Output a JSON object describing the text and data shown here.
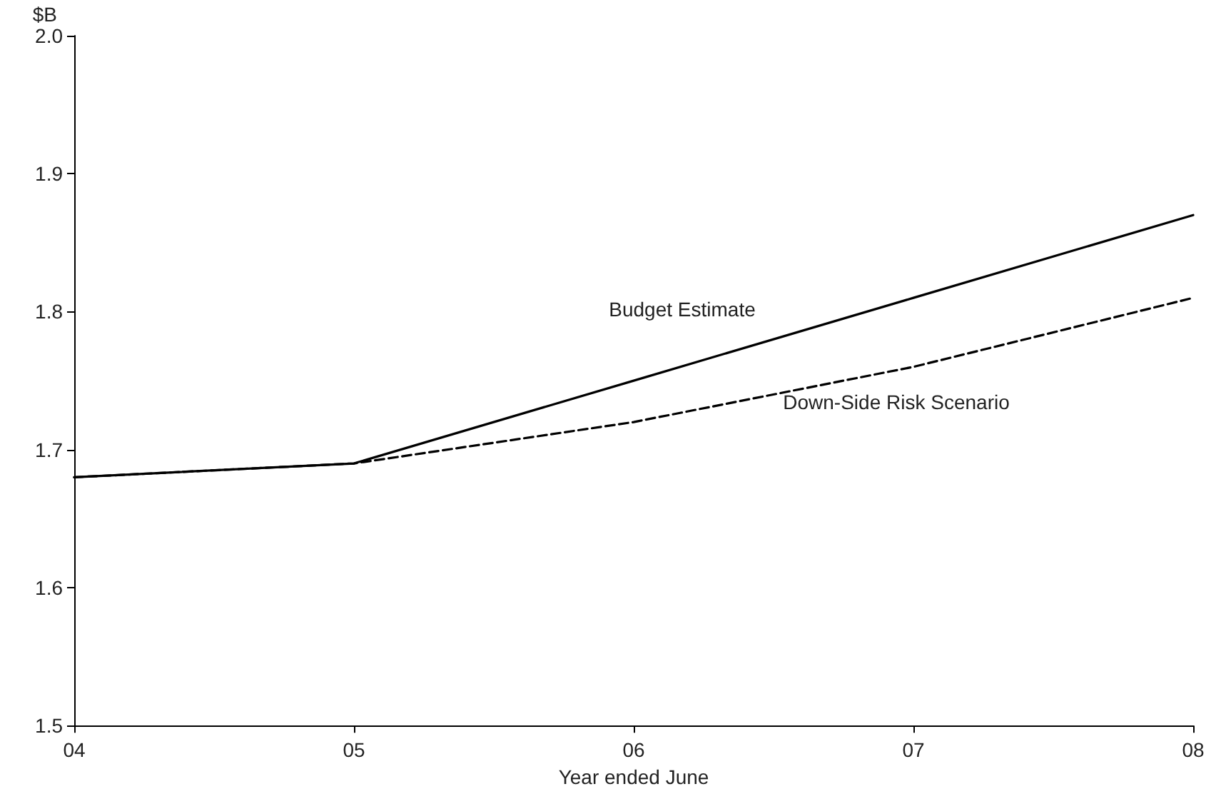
{
  "chart_data": {
    "type": "line",
    "xlabel": "Year ended June",
    "ylabel": "$B",
    "categories": [
      "04",
      "05",
      "06",
      "07",
      "08"
    ],
    "series": [
      {
        "name": "Budget Estimate",
        "color": "#000000",
        "line_style": "solid",
        "values": [
          1.68,
          1.69,
          1.75,
          1.81,
          1.87
        ]
      },
      {
        "name": "Down-Side Risk Scenario",
        "color": "#000000",
        "line_style": "dashed",
        "values": [
          1.68,
          1.69,
          1.72,
          1.76,
          1.81
        ]
      }
    ],
    "ylim": [
      1.5,
      2.0
    ],
    "yticks": [
      {
        "value": 1.5,
        "label": "1.5"
      },
      {
        "value": 1.6,
        "label": "1.6"
      },
      {
        "value": 1.7,
        "label": "1.7"
      },
      {
        "value": 1.8,
        "label": "1.8"
      },
      {
        "value": 1.9,
        "label": "1.9"
      },
      {
        "value": 2,
        "label": "2.0"
      }
    ],
    "grid": false,
    "legend": false,
    "marker": "none"
  }
}
